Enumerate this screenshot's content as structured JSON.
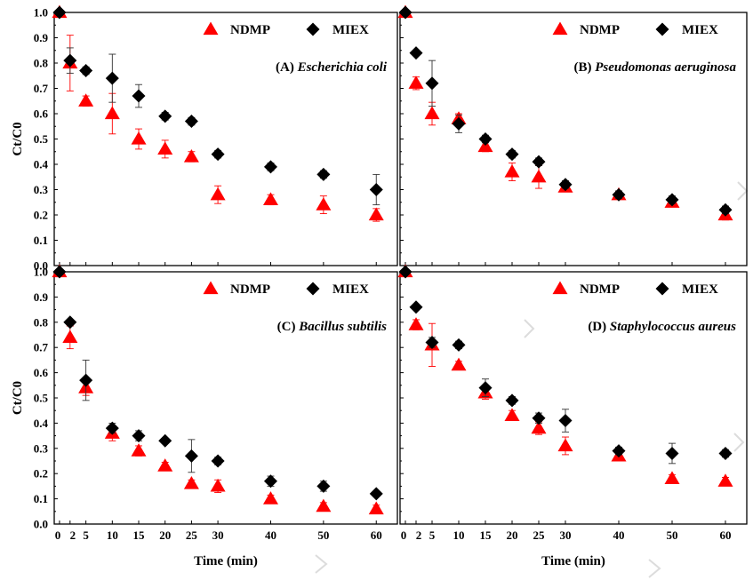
{
  "chart_data": [
    {
      "type": "scatter",
      "title": "(A) Escherichia coli",
      "title_prefix": "(A)",
      "title_italic": "Escherichia coli",
      "xlabel": "",
      "ylabel": "Ct/C0",
      "xlim": [
        -1,
        64
      ],
      "ylim": [
        0,
        1.0
      ],
      "x_ticks": [
        0,
        2,
        5,
        10,
        15,
        20,
        25,
        30,
        40,
        50,
        60
      ],
      "y_ticks": [
        "0.0",
        "0.1",
        "0.2",
        "0.3",
        "0.4",
        "0.5",
        "0.6",
        "0.7",
        "0.8",
        "0.9",
        "1.0"
      ],
      "legend_position": "top-right",
      "series": [
        {
          "name": "NDMP",
          "marker": "triangle",
          "color": "#ff0000",
          "x": [
            0,
            2,
            5,
            10,
            15,
            20,
            25,
            30,
            40,
            50,
            60
          ],
          "values": [
            1.0,
            0.8,
            0.65,
            0.6,
            0.5,
            0.46,
            0.43,
            0.28,
            0.26,
            0.24,
            0.2
          ],
          "err": [
            0,
            0.11,
            0.02,
            0.08,
            0.04,
            0.035,
            0.02,
            0.035,
            0.02,
            0.035,
            0.025
          ]
        },
        {
          "name": "MIEX",
          "marker": "diamond",
          "color": "#000000",
          "x": [
            0,
            2,
            5,
            10,
            15,
            20,
            25,
            30,
            40,
            50,
            60
          ],
          "values": [
            1.0,
            0.81,
            0.77,
            0.74,
            0.67,
            0.59,
            0.57,
            0.44,
            0.39,
            0.36,
            0.3
          ],
          "err": [
            0,
            0.05,
            0.015,
            0.095,
            0.045,
            0.015,
            0.015,
            0.015,
            0.015,
            0.015,
            0.06
          ]
        }
      ]
    },
    {
      "type": "scatter",
      "title": "(B) Pseudomonas aeruginosa",
      "title_prefix": "(B)",
      "title_italic": "Pseudomonas aeruginosa",
      "xlabel": "",
      "ylabel": "",
      "xlim": [
        -1,
        64
      ],
      "ylim": [
        0,
        1.0
      ],
      "legend_position": "top-right",
      "series": [
        {
          "name": "NDMP",
          "marker": "triangle",
          "color": "#ff0000",
          "x": [
            0,
            2,
            5,
            10,
            15,
            20,
            25,
            30,
            40,
            50,
            60
          ],
          "values": [
            1.0,
            0.72,
            0.6,
            0.58,
            0.47,
            0.37,
            0.35,
            0.31,
            0.28,
            0.25,
            0.2
          ],
          "err": [
            0,
            0.025,
            0.045,
            0.02,
            0.02,
            0.035,
            0.045,
            0.015,
            0.015,
            0.015,
            0.02
          ]
        },
        {
          "name": "MIEX",
          "marker": "diamond",
          "color": "#000000",
          "x": [
            0,
            2,
            5,
            10,
            15,
            20,
            25,
            30,
            40,
            50,
            60
          ],
          "values": [
            1.0,
            0.84,
            0.72,
            0.56,
            0.5,
            0.44,
            0.41,
            0.32,
            0.28,
            0.26,
            0.22
          ],
          "err": [
            0,
            0.01,
            0.09,
            0.035,
            0.015,
            0.015,
            0.015,
            0.015,
            0.015,
            0.015,
            0.015
          ]
        }
      ]
    },
    {
      "type": "scatter",
      "title": "(C) Bacillus subtilis",
      "title_prefix": "(C)",
      "title_italic": "Bacillus subtilis",
      "xlabel": "Time (min)",
      "ylabel": "Ct/C0",
      "xlim": [
        -1,
        64
      ],
      "ylim": [
        0,
        1.0
      ],
      "x_ticks": [
        0,
        2,
        5,
        10,
        15,
        20,
        25,
        30,
        40,
        50,
        60
      ],
      "y_ticks": [
        "0.0",
        "0.1",
        "0.2",
        "0.3",
        "0.4",
        "0.5",
        "0.6",
        "0.7",
        "0.8",
        "0.9",
        "1.0"
      ],
      "legend_position": "top-right",
      "series": [
        {
          "name": "NDMP",
          "marker": "triangle",
          "color": "#ff0000",
          "x": [
            0,
            2,
            5,
            10,
            15,
            20,
            25,
            30,
            40,
            50,
            60
          ],
          "values": [
            1.0,
            0.74,
            0.54,
            0.36,
            0.29,
            0.23,
            0.16,
            0.15,
            0.1,
            0.07,
            0.06
          ],
          "err": [
            0,
            0.045,
            0.03,
            0.03,
            0.02,
            0.015,
            0.015,
            0.025,
            0.015,
            0.015,
            0.015
          ]
        },
        {
          "name": "MIEX",
          "marker": "diamond",
          "color": "#000000",
          "x": [
            0,
            2,
            5,
            10,
            15,
            20,
            25,
            30,
            40,
            50,
            60
          ],
          "values": [
            1.0,
            0.8,
            0.57,
            0.38,
            0.35,
            0.33,
            0.27,
            0.25,
            0.17,
            0.15,
            0.12
          ],
          "err": [
            0,
            0.01,
            0.08,
            0.02,
            0.02,
            0.01,
            0.065,
            0.015,
            0.02,
            0.02,
            0.01
          ]
        }
      ]
    },
    {
      "type": "scatter",
      "title": "(D) Staphylococcus aureus",
      "title_prefix": "(D)",
      "title_italic": "Staphylococcus aureus",
      "xlabel": "Time (min)",
      "ylabel": "",
      "xlim": [
        -1,
        64
      ],
      "ylim": [
        0,
        1.0
      ],
      "x_ticks": [
        0,
        2,
        5,
        10,
        15,
        20,
        25,
        30,
        40,
        50,
        60
      ],
      "legend_position": "top-right",
      "series": [
        {
          "name": "NDMP",
          "marker": "triangle",
          "color": "#ff0000",
          "x": [
            0,
            2,
            5,
            10,
            15,
            20,
            25,
            30,
            40,
            50,
            60
          ],
          "values": [
            1.0,
            0.79,
            0.71,
            0.63,
            0.52,
            0.43,
            0.38,
            0.31,
            0.27,
            0.18,
            0.17
          ],
          "err": [
            0,
            0.02,
            0.085,
            0.015,
            0.025,
            0.02,
            0.025,
            0.035,
            0.02,
            0.015,
            0.015
          ]
        },
        {
          "name": "MIEX",
          "marker": "diamond",
          "color": "#000000",
          "x": [
            0,
            2,
            5,
            10,
            15,
            20,
            25,
            30,
            40,
            50,
            60
          ],
          "values": [
            1.0,
            0.86,
            0.72,
            0.71,
            0.54,
            0.49,
            0.42,
            0.41,
            0.29,
            0.28,
            0.28
          ],
          "err": [
            0,
            0.01,
            0.02,
            0.015,
            0.035,
            0.015,
            0.02,
            0.045,
            0.015,
            0.04,
            0.015
          ]
        }
      ]
    }
  ]
}
